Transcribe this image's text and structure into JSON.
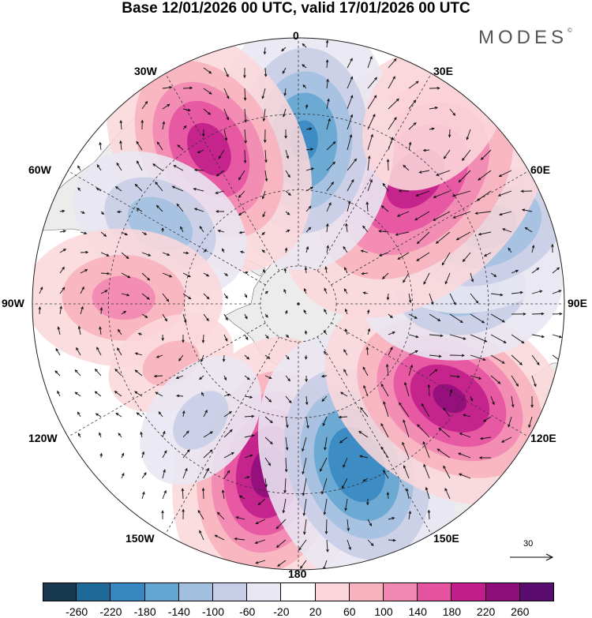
{
  "title": "Base 12/01/2026 00 UTC, valid 17/01/2026 00 UTC",
  "brand": {
    "name": "MODES",
    "mark": "©"
  },
  "longitude_labels": [
    "0",
    "30E",
    "60E",
    "90E",
    "120E",
    "150E",
    "180",
    "150W",
    "120W",
    "90W",
    "60W",
    "30W"
  ],
  "vector_scale": {
    "value": "30"
  },
  "colorbar": {
    "colors": [
      "#17384f",
      "#1d6a98",
      "#3788c0",
      "#63a6d1",
      "#a3bfe0",
      "#c7cde6",
      "#e8e7f3",
      "#ffffff",
      "#fbd7db",
      "#f7b2bd",
      "#f188b2",
      "#e552a0",
      "#c21d8a",
      "#8e0e7a",
      "#5a0c6e"
    ],
    "ticks": [
      "-260",
      "-220",
      "-180",
      "-140",
      "-100",
      "-60",
      "-20",
      "20",
      "60",
      "100",
      "140",
      "180",
      "220",
      "260"
    ]
  },
  "anomaly_centers": [
    {
      "lon": 350,
      "colat": 45,
      "value": 240,
      "spread": 14
    },
    {
      "lon": 20,
      "colat": 45,
      "value": -220,
      "spread": 14
    },
    {
      "lon": 58,
      "colat": 47,
      "value": 230,
      "spread": 14
    },
    {
      "lon": 95,
      "colat": 43,
      "value": -130,
      "spread": 12
    },
    {
      "lon": 112,
      "colat": 54,
      "value": -160,
      "spread": 13
    },
    {
      "lon": 137,
      "colat": 45,
      "value": 200,
      "spread": 17
    },
    {
      "lon": 178,
      "colat": 43,
      "value": -190,
      "spread": 14
    },
    {
      "lon": 210,
      "colat": 47,
      "value": 200,
      "spread": 14
    },
    {
      "lon": 240,
      "colat": 42,
      "value": -130,
      "spread": 11
    },
    {
      "lon": 268,
      "colat": 46,
      "value": 120,
      "spread": 12
    },
    {
      "lon": 295,
      "colat": 37,
      "value": 80,
      "spread": 9
    },
    {
      "lon": 320,
      "colat": 40,
      "value": -80,
      "spread": 10
    },
    {
      "lon": 145,
      "colat": 63,
      "value": 60,
      "spread": 14
    }
  ]
}
